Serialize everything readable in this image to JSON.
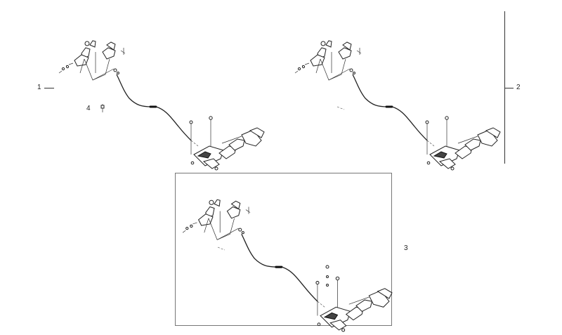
{
  "callouts": {
    "one": "1",
    "two": "2",
    "three": "3",
    "four": "4"
  },
  "colors": {
    "line": "#222222",
    "frame": "#777777",
    "background": "#ffffff"
  }
}
